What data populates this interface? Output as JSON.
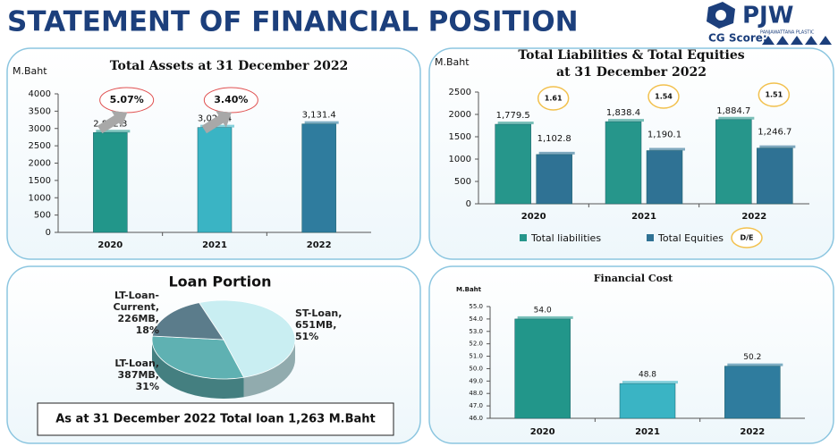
{
  "header": {
    "title": "STATEMENT OF FINANCIAL POSITION",
    "logo": "PJW",
    "logo_subtitle": "PANJAWATTANA PLASTIC",
    "cg_score": "CG Score:"
  },
  "chart_data": [
    {
      "type": "bar",
      "title": "Total Assets at 31 December 2022",
      "ylabel": "M.Baht",
      "categories": [
        "2020",
        "2021",
        "2022"
      ],
      "values": [
        2882.3,
        3028.4,
        3131.4
      ],
      "value_labels": [
        "2,882.3",
        "3,028.4",
        "3,131.4"
      ],
      "colors": [
        "#22968a",
        "#3ab4c4",
        "#2f7c9e"
      ],
      "growth_labels": [
        "5.07%",
        "3.40%"
      ],
      "ylim": [
        0,
        4000
      ],
      "yticks": [
        0,
        500,
        1000,
        1500,
        2000,
        2500,
        3000,
        3500,
        4000
      ],
      "grid": false
    },
    {
      "type": "bar",
      "title": [
        "Total Liabilities & Total Equities",
        "at 31 December 2022"
      ],
      "ylabel": "M.Baht",
      "categories": [
        "2020",
        "2021",
        "2022"
      ],
      "series": [
        {
          "name": "Total liabilities",
          "color": "#26968b",
          "values": [
            1779.5,
            1838.4,
            1884.7
          ],
          "value_labels": [
            "1,779.5",
            "1,838.4",
            "1,884.7"
          ]
        },
        {
          "name": "Total Equities",
          "color": "#2f7294",
          "values": [
            1102.8,
            1190.1,
            1246.7
          ],
          "value_labels": [
            "1,102.8",
            "1,190.1",
            "1,246.7"
          ]
        }
      ],
      "ratio": {
        "name": "D/E",
        "values": [
          1.61,
          1.54,
          1.51
        ]
      },
      "ylim": [
        0,
        2500
      ],
      "yticks": [
        0,
        500,
        1000,
        1500,
        2000,
        2500
      ],
      "grid": false,
      "legend": "bottom"
    },
    {
      "type": "pie",
      "title": "Loan Portion",
      "categories": [
        "ST-Loan,",
        "LT-Loan,",
        "LT-Loan-\nCurrent,"
      ],
      "amount_labels": [
        "651MB,",
        "387MB,",
        "226MB,"
      ],
      "values": [
        51,
        31,
        18
      ],
      "value_labels": [
        "51%",
        "31%",
        "18%"
      ],
      "colors": [
        "#c9eef2",
        "#5fb1b2",
        "#5b7c8b"
      ],
      "note": "As at 31 December 2022 Total loan 1,263 M.Baht"
    },
    {
      "type": "bar",
      "title": "Financial Cost",
      "ylabel": "M.Baht",
      "categories": [
        "2020",
        "2021",
        "2022"
      ],
      "values": [
        54.0,
        48.8,
        50.2
      ],
      "value_labels": [
        "54.0",
        "48.8",
        "50.2"
      ],
      "colors": [
        "#22968a",
        "#3ab4c4",
        "#2f7c9e"
      ],
      "ylim": [
        46,
        55
      ],
      "yticks": [
        {
          "value": 46,
          "label": "46.0"
        },
        {
          "value": 47,
          "label": "47.0"
        },
        {
          "value": 48,
          "label": "48.0"
        },
        {
          "value": 49,
          "label": "49.0"
        },
        {
          "value": 50,
          "label": "50.0"
        },
        {
          "value": 51,
          "label": "51.0"
        },
        {
          "value": 52,
          "label": "52.0"
        },
        {
          "value": 53,
          "label": "53.0"
        },
        {
          "value": 54,
          "label": "54.0"
        },
        {
          "value": 55,
          "label": "55.0"
        }
      ],
      "grid": false
    }
  ]
}
